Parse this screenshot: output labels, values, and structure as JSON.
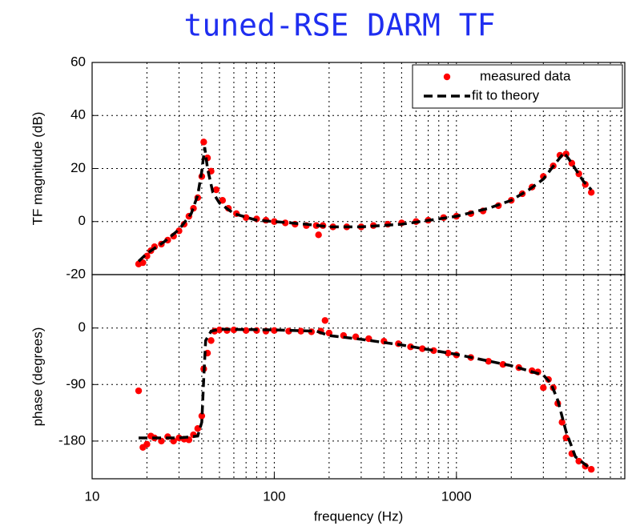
{
  "chart_data": [
    {
      "type": "scatter-line",
      "title": "tuned-RSE DARM TF",
      "ylabel": "TF magnitude (dB)",
      "xscale": "log",
      "grid": true,
      "legend": "upper right",
      "xlim": [
        10,
        8400
      ],
      "xticks": [
        10,
        100,
        1000
      ],
      "ylim": [
        -20,
        60
      ],
      "yticks": [
        -20,
        0,
        20,
        40,
        60
      ],
      "series": [
        {
          "name": "measured data",
          "color": "#ff0000",
          "style": "dots",
          "x": [
            18,
            19,
            20,
            21,
            22,
            24,
            26,
            28,
            30,
            32,
            34,
            36,
            38,
            40,
            41,
            43,
            45,
            48,
            52,
            56,
            62,
            70,
            80,
            90,
            100,
            115,
            130,
            150,
            170,
            175,
            185,
            210,
            250,
            300,
            350,
            420,
            500,
            600,
            700,
            850,
            1000,
            1200,
            1400,
            1700,
            2000,
            2300,
            2600,
            3000,
            3400,
            3700,
            4000,
            4300,
            4700,
            5100,
            5500
          ],
          "values": [
            -16,
            -15.5,
            -13,
            -11,
            -9.5,
            -8.5,
            -7,
            -5.5,
            -3.5,
            -1,
            2,
            5,
            9,
            17,
            30,
            24,
            19,
            12,
            8,
            5,
            3,
            1.5,
            1,
            0.5,
            0,
            -0.5,
            -1,
            -1.5,
            -1.5,
            -5,
            -1.5,
            -2,
            -2,
            -2,
            -1.5,
            -1,
            -0.5,
            0,
            0.5,
            1.5,
            2,
            3,
            4,
            6,
            8,
            10.5,
            13,
            17,
            21,
            25,
            25.5,
            22,
            18,
            14,
            11
          ]
        },
        {
          "name": "fit to theory",
          "color": "#000000",
          "style": "dashed",
          "x": [
            18,
            20,
            25,
            30,
            35,
            38,
            40,
            41.5,
            43,
            46,
            50,
            60,
            80,
            100,
            150,
            200,
            300,
            500,
            800,
            1000,
            1500,
            2000,
            2500,
            3000,
            3500,
            3900,
            4200,
            5000,
            5500
          ],
          "values": [
            -15,
            -12,
            -7.5,
            -3,
            3,
            10,
            19,
            28,
            20,
            11,
            7,
            3,
            0.5,
            0,
            -1,
            -2,
            -2,
            -1,
            1,
            2,
            5,
            8,
            12,
            16,
            22,
            26,
            23,
            15,
            12
          ]
        }
      ]
    },
    {
      "type": "scatter-line",
      "ylabel": "phase  (degrees)",
      "xlabel": "frequency (Hz)",
      "xscale": "log",
      "grid": true,
      "xlim": [
        10,
        8400
      ],
      "xticks": [
        10,
        100,
        1000
      ],
      "ylim": [
        -240,
        85
      ],
      "yticks": [
        -180,
        -90,
        0
      ],
      "series": [
        {
          "color": "#ff0000",
          "style": "dots",
          "x": [
            18,
            19,
            20,
            21,
            22,
            24,
            26,
            28,
            30,
            32,
            34,
            36,
            38,
            40,
            41,
            43,
            45,
            47,
            50,
            55,
            60,
            70,
            80,
            90,
            100,
            120,
            140,
            160,
            180,
            190,
            200,
            240,
            280,
            330,
            400,
            480,
            560,
            650,
            750,
            900,
            1000,
            1200,
            1500,
            1800,
            2200,
            2600,
            2800,
            3000,
            3200,
            3400,
            3600,
            3800,
            4000,
            4300,
            4700,
            5100,
            5500
          ],
          "values": [
            -100,
            -190,
            -185,
            -172,
            -175,
            -180,
            -173,
            -180,
            -175,
            -177,
            -178,
            -170,
            -160,
            -140,
            -65,
            -40,
            -20,
            -5,
            -3,
            -4,
            -3,
            -4,
            -4,
            -5,
            -4,
            -5,
            -5,
            -6,
            -5,
            12,
            -8,
            -12,
            -14,
            -17,
            -21,
            -25,
            -30,
            -33,
            -36,
            -40,
            -43,
            -47,
            -53,
            -58,
            -63,
            -68,
            -70,
            -95,
            -82,
            -95,
            -120,
            -150,
            -175,
            -200,
            -212,
            -220,
            -225
          ]
        },
        {
          "color": "#000000",
          "style": "dashed",
          "x": [
            18,
            30,
            38,
            40,
            41,
            42,
            45,
            50,
            100,
            170,
            200,
            300,
            500,
            1000,
            2000,
            3000,
            3300,
            3600,
            4000,
            4500,
            5500
          ],
          "values": [
            -175,
            -175,
            -172,
            -150,
            -80,
            -20,
            -5,
            -2,
            -3,
            -5,
            -12,
            -18,
            -27,
            -42,
            -60,
            -75,
            -88,
            -115,
            -165,
            -205,
            -225
          ]
        }
      ]
    }
  ]
}
